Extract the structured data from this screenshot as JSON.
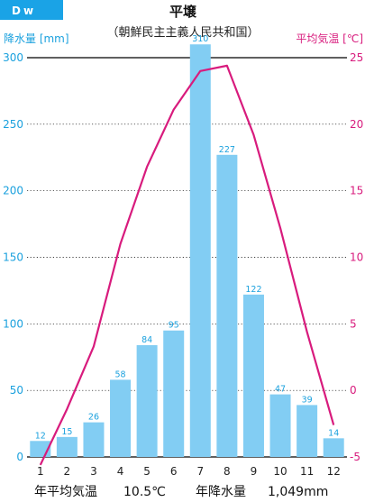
{
  "badge": "Dw",
  "colors": {
    "badge_bg": "#1aa3e6",
    "bar_fill": "#82cdf3",
    "bar_label": "#1ba1de",
    "precip_axis": "#1ba1de",
    "temp_line": "#d81b7d",
    "gridline": "#000000",
    "text": "#222222"
  },
  "summary": {
    "temp_label": "年平均気温",
    "temp_value": "10.5℃",
    "precip_label": "年降水量",
    "precip_value": "1,049mm"
  },
  "chart_data": {
    "type": "bar+line",
    "title": "平壌",
    "subtitle": "（朝鮮民主主義人民共和国）",
    "categories": [
      "1",
      "2",
      "3",
      "4",
      "5",
      "6",
      "7",
      "8",
      "9",
      "10",
      "11",
      "12"
    ],
    "series": [
      {
        "name": "降水量",
        "type": "bar",
        "axis": "left",
        "values": [
          12,
          15,
          26,
          58,
          84,
          95,
          310,
          227,
          122,
          47,
          39,
          14
        ],
        "labels": [
          "12",
          "15",
          "26",
          "58",
          "84",
          "95",
          "310",
          "227",
          "122",
          "47",
          "39",
          "14"
        ]
      },
      {
        "name": "平均気温",
        "type": "line",
        "axis": "right",
        "values": [
          -5.6,
          -1.4,
          3.3,
          11.0,
          16.8,
          21.1,
          24.0,
          24.4,
          19.2,
          12.2,
          4.4,
          -2.6
        ]
      }
    ],
    "ylabel_left": "降水量 [mm]",
    "ylabel_right": "平均気温 [℃]",
    "ylim_left": [
      0,
      300
    ],
    "ylim_right": [
      -5,
      25
    ],
    "yticks_left": [
      "0",
      "50",
      "100",
      "150",
      "200",
      "250",
      "300"
    ],
    "yticks_right": [
      "-5",
      "0",
      "5",
      "10",
      "15",
      "20",
      "25"
    ],
    "grid": true
  }
}
